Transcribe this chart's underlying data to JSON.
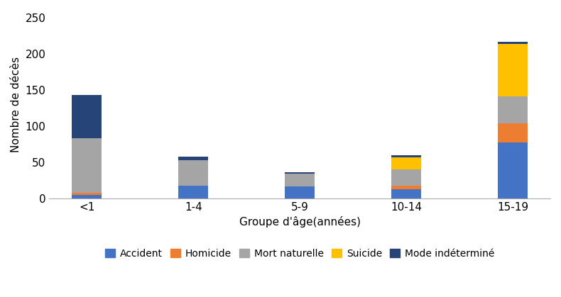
{
  "categories": [
    "<1",
    "1-4",
    "5-9",
    "10-14",
    "15-19"
  ],
  "series_order": [
    "Accident",
    "Homicide",
    "Mort naturelle",
    "Suicide",
    "Mode indéterminé"
  ],
  "series": {
    "Accident": [
      5,
      18,
      17,
      13,
      78
    ],
    "Homicide": [
      3,
      0,
      0,
      5,
      26
    ],
    "Mort naturelle": [
      75,
      35,
      17,
      22,
      37
    ],
    "Suicide": [
      0,
      0,
      0,
      17,
      73
    ],
    "Mode indéterminé": [
      60,
      5,
      2,
      3,
      3
    ]
  },
  "colors": {
    "Accident": "#4472C4",
    "Homicide": "#ED7D31",
    "Mort naturelle": "#A5A5A5",
    "Suicide": "#FFC000",
    "Mode indéterminé": "#264478"
  },
  "ylabel": "Nombre de décès",
  "xlabel": "Groupe d'âge(années)",
  "ylim": [
    0,
    260
  ],
  "yticks": [
    0,
    50,
    100,
    150,
    200,
    250
  ],
  "bar_width": 0.28,
  "background_color": "#ffffff",
  "legend_fontsize": 10,
  "axis_fontsize": 11,
  "tick_fontsize": 11
}
